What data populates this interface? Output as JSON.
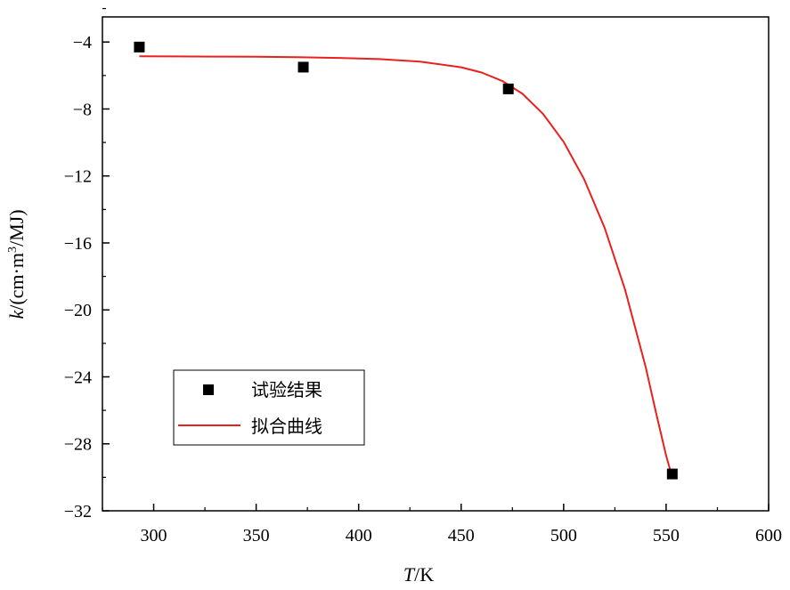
{
  "chart_data": {
    "type": "scatter",
    "x_axis": {
      "label_var": "T",
      "label_unit": "/K",
      "range": [
        275,
        600
      ],
      "ticks": [
        300,
        350,
        400,
        450,
        500,
        550,
        600
      ],
      "tick_labels": [
        "300",
        "350",
        "400",
        "450",
        "500",
        "550",
        "600"
      ]
    },
    "y_axis": {
      "label_var": "k",
      "label_unit": "/(cm·m",
      "label_sup": "3",
      "label_tail": "/MJ)",
      "range": [
        -32,
        -2.5
      ],
      "ticks": [
        -4,
        -8,
        -12,
        -16,
        -20,
        -24,
        -28,
        -32
      ],
      "tick_labels": [
        "−4",
        "−8",
        "−12",
        "−16",
        "−20",
        "−24",
        "−28",
        "−32"
      ]
    },
    "series": [
      {
        "name": "试验结果",
        "kind": "markers",
        "color": "#000000",
        "x": [
          293,
          373,
          473,
          553
        ],
        "y": [
          -4.3,
          -5.5,
          -6.8,
          -29.8
        ]
      },
      {
        "name": "拟合曲线",
        "kind": "line",
        "color": "#e8211f",
        "x": [
          293,
          310,
          330,
          350,
          370,
          390,
          410,
          430,
          450,
          460,
          470,
          480,
          490,
          500,
          510,
          520,
          530,
          540,
          545,
          550,
          553
        ],
        "y": [
          -4.85,
          -4.86,
          -4.87,
          -4.88,
          -4.91,
          -4.95,
          -5.02,
          -5.17,
          -5.51,
          -5.82,
          -6.32,
          -7.1,
          -8.3,
          -9.96,
          -12.2,
          -15.1,
          -18.8,
          -23.4,
          -26.1,
          -28.7,
          -30.0
        ]
      }
    ],
    "legend": {
      "position": "bottom-left",
      "entries": [
        "试验结果",
        "拟合曲线"
      ]
    }
  }
}
